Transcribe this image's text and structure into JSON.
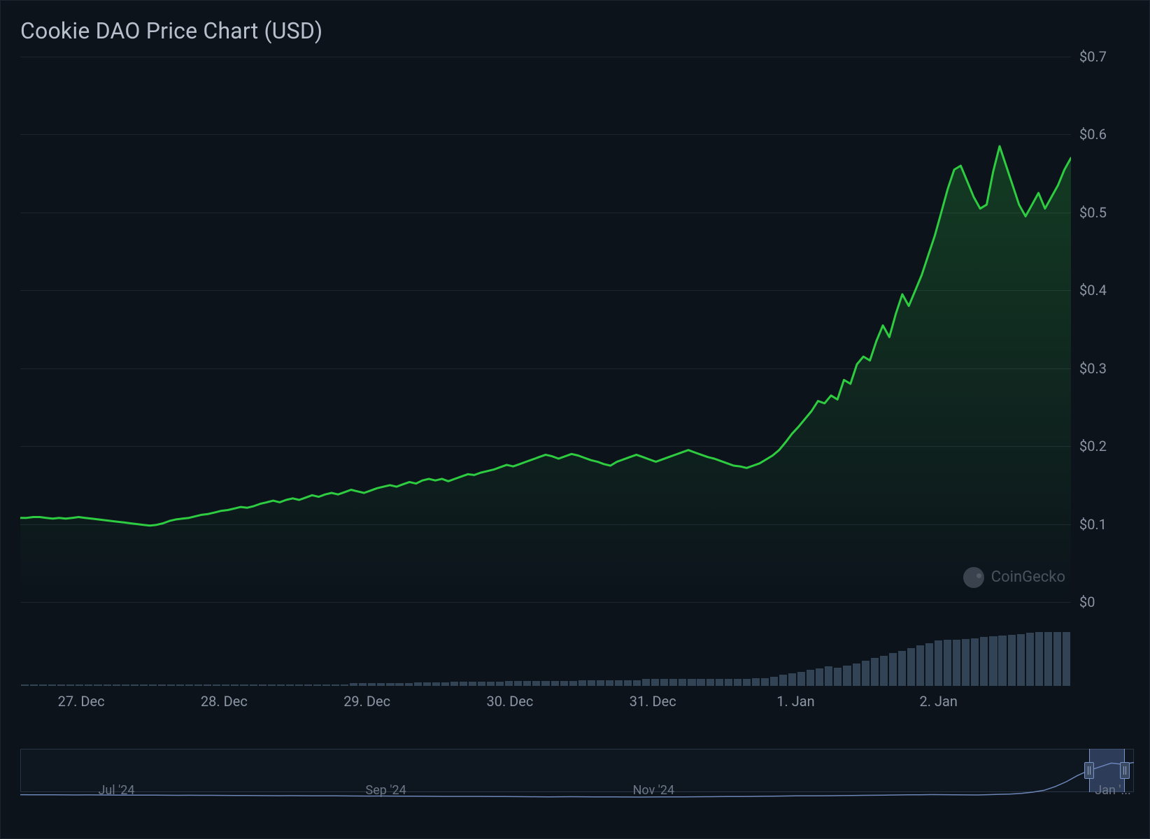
{
  "title": "Cookie DAO Price Chart (USD)",
  "watermark": "CoinGecko",
  "colors": {
    "background": "#0c131b",
    "grid": "#1d2531",
    "text": "#8b95a3",
    "title_text": "#b7c0cc",
    "line": "#2ecc40",
    "line_stroke_width": 3,
    "area_fill_top": "rgba(46,204,64,0.22)",
    "area_fill_bottom": "rgba(46,204,64,0.00)",
    "volume_bar": "#334356",
    "navigator_line": "#6d86b8",
    "navigator_selection": "rgba(102,133,194,0.35)",
    "navigator_border": "#2a3544"
  },
  "typography": {
    "title_fontsize": 32,
    "axis_fontsize": 20,
    "nav_fontsize": 18
  },
  "price_chart": {
    "type": "area",
    "y_axis": {
      "min": 0,
      "max": 0.7,
      "step": 0.1,
      "labels": [
        "$0",
        "$0.1",
        "$0.2",
        "$0.3",
        "$0.4",
        "$0.5",
        "$0.6",
        "$0.7"
      ]
    },
    "x_axis": {
      "labels": [
        "27. Dec",
        "28. Dec",
        "29. Dec",
        "30. Dec",
        "31. Dec",
        "1. Jan",
        "2. Jan"
      ],
      "positions_pct": [
        5.8,
        19.4,
        33.0,
        46.6,
        60.2,
        73.8,
        87.4
      ]
    },
    "series": [
      0.108,
      0.108,
      0.109,
      0.109,
      0.108,
      0.107,
      0.108,
      0.107,
      0.108,
      0.109,
      0.108,
      0.107,
      0.106,
      0.105,
      0.104,
      0.103,
      0.102,
      0.101,
      0.1,
      0.099,
      0.098,
      0.099,
      0.101,
      0.104,
      0.106,
      0.107,
      0.108,
      0.11,
      0.112,
      0.113,
      0.115,
      0.117,
      0.118,
      0.12,
      0.122,
      0.121,
      0.123,
      0.126,
      0.128,
      0.13,
      0.128,
      0.131,
      0.133,
      0.131,
      0.134,
      0.137,
      0.135,
      0.138,
      0.14,
      0.138,
      0.141,
      0.144,
      0.142,
      0.14,
      0.143,
      0.146,
      0.148,
      0.15,
      0.148,
      0.151,
      0.154,
      0.152,
      0.156,
      0.158,
      0.156,
      0.158,
      0.155,
      0.158,
      0.161,
      0.164,
      0.163,
      0.166,
      0.168,
      0.17,
      0.173,
      0.176,
      0.174,
      0.177,
      0.18,
      0.183,
      0.186,
      0.189,
      0.187,
      0.184,
      0.187,
      0.19,
      0.188,
      0.185,
      0.182,
      0.18,
      0.177,
      0.175,
      0.18,
      0.183,
      0.186,
      0.189,
      0.186,
      0.183,
      0.18,
      0.183,
      0.186,
      0.189,
      0.192,
      0.195,
      0.192,
      0.189,
      0.186,
      0.184,
      0.181,
      0.178,
      0.175,
      0.174,
      0.172,
      0.175,
      0.178,
      0.183,
      0.188,
      0.195,
      0.205,
      0.216,
      0.225,
      0.235,
      0.245,
      0.258,
      0.255,
      0.265,
      0.26,
      0.285,
      0.28,
      0.305,
      0.315,
      0.31,
      0.335,
      0.355,
      0.34,
      0.37,
      0.395,
      0.38,
      0.4,
      0.42,
      0.445,
      0.47,
      0.5,
      0.53,
      0.555,
      0.56,
      0.54,
      0.52,
      0.505,
      0.51,
      0.552,
      0.585,
      0.56,
      0.535,
      0.51,
      0.495,
      0.51,
      0.525,
      0.505,
      0.52,
      0.535,
      0.555,
      0.57
    ],
    "series_count": 163
  },
  "volume_chart": {
    "type": "bar",
    "max": 100,
    "values": [
      2,
      2,
      2,
      2,
      2,
      2,
      2,
      2,
      2,
      2,
      2,
      2,
      2,
      2,
      2,
      2,
      2,
      2,
      2,
      2,
      2,
      2,
      2,
      2,
      2,
      2,
      2,
      2,
      2,
      2,
      2,
      2,
      2,
      2,
      2,
      2,
      3,
      3,
      3,
      3,
      3,
      3,
      3,
      4,
      4,
      4,
      4,
      5,
      5,
      5,
      5,
      5,
      5,
      6,
      6,
      6,
      6,
      6,
      6,
      6,
      6,
      7,
      7,
      7,
      7,
      7,
      7,
      7,
      8,
      8,
      8,
      8,
      8,
      8,
      8,
      8,
      8,
      8,
      8,
      8,
      9,
      9,
      11,
      13,
      15,
      17,
      19,
      21,
      23,
      22,
      24,
      27,
      30,
      33,
      36,
      39,
      42,
      45,
      48,
      51,
      54,
      55,
      55,
      56,
      57,
      58,
      59,
      60,
      61,
      62,
      63,
      64,
      64,
      64,
      64
    ]
  },
  "navigator": {
    "labels": [
      "Jul '24",
      "Sep '24",
      "Nov '24",
      "Jan '..."
    ],
    "positions_pct": [
      7,
      31,
      55,
      96.5
    ],
    "selection_start_pct": 96.0,
    "selection_width_pct": 3.2,
    "series": [
      0.05,
      0.049,
      0.048,
      0.047,
      0.046,
      0.045,
      0.046,
      0.045,
      0.044,
      0.043,
      0.042,
      0.043,
      0.042,
      0.041,
      0.04,
      0.041,
      0.04,
      0.039,
      0.038,
      0.037,
      0.036,
      0.035,
      0.034,
      0.033,
      0.034,
      0.033,
      0.032,
      0.031,
      0.03,
      0.029,
      0.028,
      0.027,
      0.028,
      0.027,
      0.026,
      0.025,
      0.024,
      0.023,
      0.022,
      0.021,
      0.022,
      0.021,
      0.02,
      0.019,
      0.018,
      0.017,
      0.016,
      0.015,
      0.016,
      0.017,
      0.016,
      0.015,
      0.014,
      0.013,
      0.012,
      0.011,
      0.012,
      0.013,
      0.014,
      0.015,
      0.016,
      0.017,
      0.018,
      0.019,
      0.02,
      0.022,
      0.024,
      0.026,
      0.028,
      0.03,
      0.032,
      0.031,
      0.033,
      0.035,
      0.037,
      0.039,
      0.041,
      0.043,
      0.045,
      0.047,
      0.049,
      0.051,
      0.05,
      0.048,
      0.046,
      0.045,
      0.05,
      0.055,
      0.06,
      0.07,
      0.09,
      0.12,
      0.18,
      0.26,
      0.36,
      0.44,
      0.5,
      0.56,
      0.54,
      0.57
    ],
    "series_count": 100,
    "y_max": 0.7
  }
}
